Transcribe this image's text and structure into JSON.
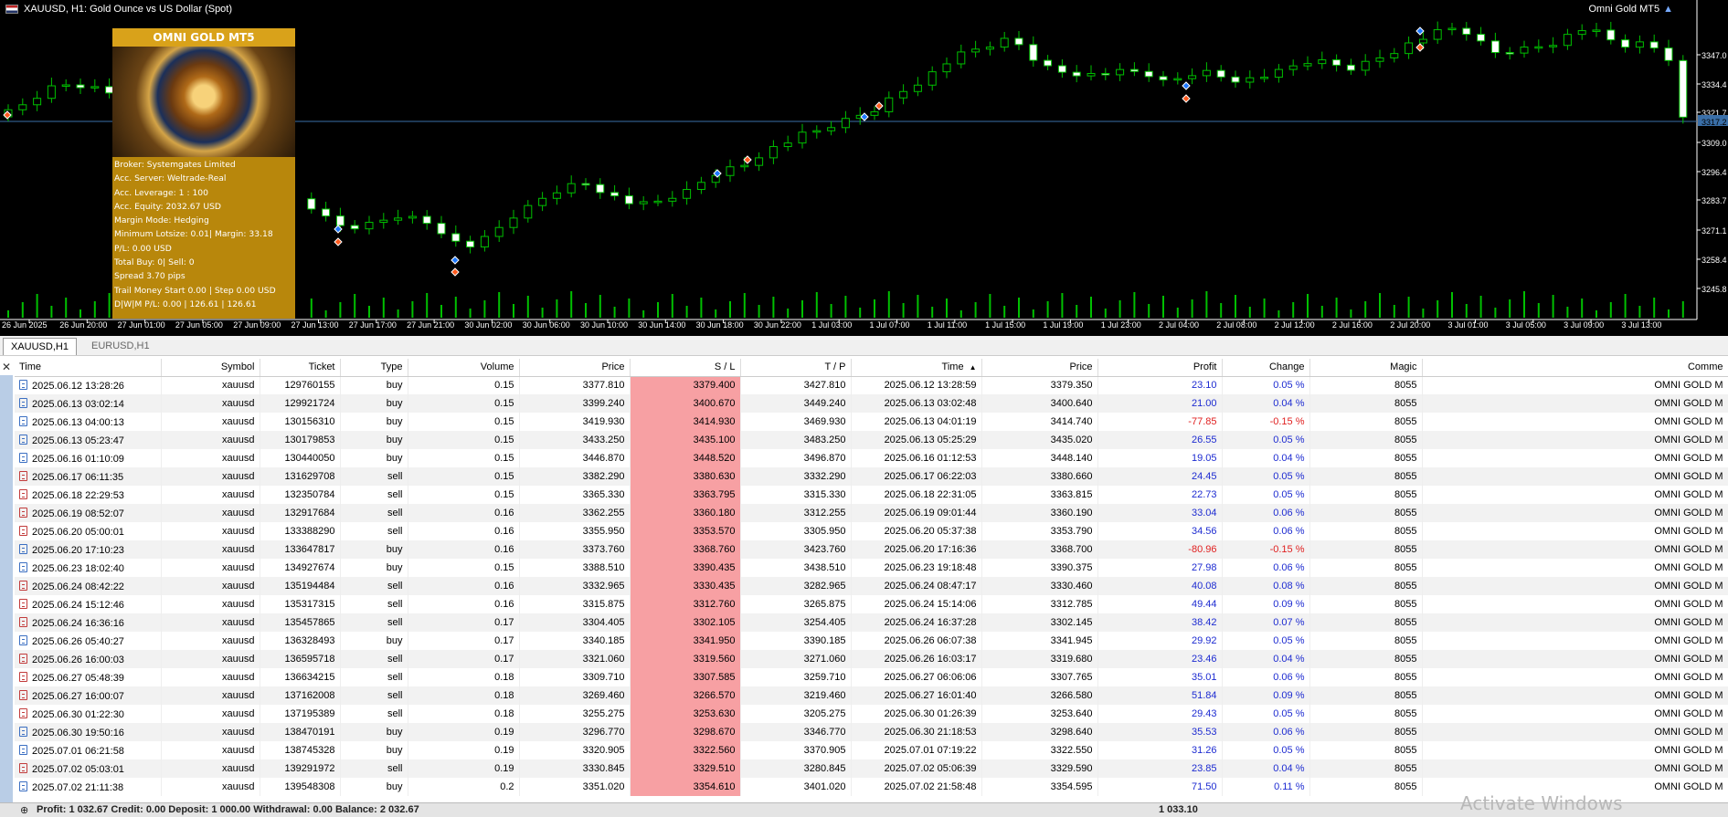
{
  "chart": {
    "title": "XAUUSD, H1:  Gold Ounce vs US Dollar (Spot)",
    "ea_name": "Omni Gold MT5",
    "price_labels": [
      "3347.0",
      "3334.4",
      "3321.7",
      "3317.2",
      "3309.0",
      "3296.4",
      "3283.7",
      "3271.1",
      "3258.4",
      "3245.8"
    ],
    "time_labels": [
      "26 Jun 2025",
      "26 Jun 20:00",
      "27 Jun 01:00",
      "27 Jun 05:00",
      "27 Jun 09:00",
      "27 Jun 13:00",
      "27 Jun 17:00",
      "27 Jun 21:00",
      "30 Jun 02:00",
      "30 Jun 06:00",
      "30 Jun 10:00",
      "30 Jun 14:00",
      "30 Jun 18:00",
      "30 Jun 22:00",
      "1 Jul 03:00",
      "1 Jul 07:00",
      "1 Jul 11:00",
      "1 Jul 15:00",
      "1 Jul 19:00",
      "1 Jul 23:00",
      "2 Jul 04:00",
      "2 Jul 08:00",
      "2 Jul 12:00",
      "2 Jul 16:00",
      "2 Jul 20:00",
      "3 Jul 01:00",
      "3 Jul 05:00",
      "3 Jul 09:00",
      "3 Jul 13:00"
    ]
  },
  "panel": {
    "title": "OMNI GOLD MT5",
    "lines": [
      "Broker:  Systemgates Limited",
      "Acc. Server:  Weltrade-Real",
      "Acc. Leverage:  1 : 100",
      "Acc. Equity:  2032.67 USD",
      "Margin Mode:  Hedging",
      "Minimum Lotsize: 0.01| Margin: 33.18",
      "P/L: 0.00 USD",
      "Total Buy: 0| Sell: 0",
      "Spread 3.70 pips",
      "Trail Money Start 0.00 | Step 0.00 USD",
      "D|W|M P/L: 0.00 | 126.61 | 126.61"
    ]
  },
  "tabs": [
    "XAUUSD,H1",
    "EURUSD,H1"
  ],
  "columns": [
    "Time",
    "Symbol",
    "Ticket",
    "Type",
    "Volume",
    "Price",
    "S / L",
    "T / P",
    "Time",
    "Price",
    "Profit",
    "Change",
    "Magic",
    "Comme"
  ],
  "rows": [
    [
      "2025.06.12 13:28:26",
      "xauusd",
      "129760155",
      "buy",
      "0.15",
      "3377.810",
      "3379.400",
      "3427.810",
      "2025.06.12 13:28:59",
      "3379.350",
      "23.10",
      "0.05 %",
      "8055",
      "OMNI GOLD M"
    ],
    [
      "2025.06.13 03:02:14",
      "xauusd",
      "129921724",
      "buy",
      "0.15",
      "3399.240",
      "3400.670",
      "3449.240",
      "2025.06.13 03:02:48",
      "3400.640",
      "21.00",
      "0.04 %",
      "8055",
      "OMNI GOLD M"
    ],
    [
      "2025.06.13 04:00:13",
      "xauusd",
      "130156310",
      "buy",
      "0.15",
      "3419.930",
      "3414.930",
      "3469.930",
      "2025.06.13 04:01:19",
      "3414.740",
      "-77.85",
      "-0.15 %",
      "8055",
      "OMNI GOLD M"
    ],
    [
      "2025.06.13 05:23:47",
      "xauusd",
      "130179853",
      "buy",
      "0.15",
      "3433.250",
      "3435.100",
      "3483.250",
      "2025.06.13 05:25:29",
      "3435.020",
      "26.55",
      "0.05 %",
      "8055",
      "OMNI GOLD M"
    ],
    [
      "2025.06.16 01:10:09",
      "xauusd",
      "130440050",
      "buy",
      "0.15",
      "3446.870",
      "3448.520",
      "3496.870",
      "2025.06.16 01:12:53",
      "3448.140",
      "19.05",
      "0.04 %",
      "8055",
      "OMNI GOLD M"
    ],
    [
      "2025.06.17 06:11:35",
      "xauusd",
      "131629708",
      "sell",
      "0.15",
      "3382.290",
      "3380.630",
      "3332.290",
      "2025.06.17 06:22:03",
      "3380.660",
      "24.45",
      "0.05 %",
      "8055",
      "OMNI GOLD M"
    ],
    [
      "2025.06.18 22:29:53",
      "xauusd",
      "132350784",
      "sell",
      "0.15",
      "3365.330",
      "3363.795",
      "3315.330",
      "2025.06.18 22:31:05",
      "3363.815",
      "22.73",
      "0.05 %",
      "8055",
      "OMNI GOLD M"
    ],
    [
      "2025.06.19 08:52:07",
      "xauusd",
      "132917684",
      "sell",
      "0.16",
      "3362.255",
      "3360.180",
      "3312.255",
      "2025.06.19 09:01:44",
      "3360.190",
      "33.04",
      "0.06 %",
      "8055",
      "OMNI GOLD M"
    ],
    [
      "2025.06.20 05:00:01",
      "xauusd",
      "133388290",
      "sell",
      "0.16",
      "3355.950",
      "3353.570",
      "3305.950",
      "2025.06.20 05:37:38",
      "3353.790",
      "34.56",
      "0.06 %",
      "8055",
      "OMNI GOLD M"
    ],
    [
      "2025.06.20 17:10:23",
      "xauusd",
      "133647817",
      "buy",
      "0.16",
      "3373.760",
      "3368.760",
      "3423.760",
      "2025.06.20 17:16:36",
      "3368.700",
      "-80.96",
      "-0.15 %",
      "8055",
      "OMNI GOLD M"
    ],
    [
      "2025.06.23 18:02:40",
      "xauusd",
      "134927674",
      "buy",
      "0.15",
      "3388.510",
      "3390.435",
      "3438.510",
      "2025.06.23 19:18:48",
      "3390.375",
      "27.98",
      "0.06 %",
      "8055",
      "OMNI GOLD M"
    ],
    [
      "2025.06.24 08:42:22",
      "xauusd",
      "135194484",
      "sell",
      "0.16",
      "3332.965",
      "3330.435",
      "3282.965",
      "2025.06.24 08:47:17",
      "3330.460",
      "40.08",
      "0.08 %",
      "8055",
      "OMNI GOLD M"
    ],
    [
      "2025.06.24 15:12:46",
      "xauusd",
      "135317315",
      "sell",
      "0.16",
      "3315.875",
      "3312.760",
      "3265.875",
      "2025.06.24 15:14:06",
      "3312.785",
      "49.44",
      "0.09 %",
      "8055",
      "OMNI GOLD M"
    ],
    [
      "2025.06.24 16:36:16",
      "xauusd",
      "135457865",
      "sell",
      "0.17",
      "3304.405",
      "3302.105",
      "3254.405",
      "2025.06.24 16:37:28",
      "3302.145",
      "38.42",
      "0.07 %",
      "8055",
      "OMNI GOLD M"
    ],
    [
      "2025.06.26 05:40:27",
      "xauusd",
      "136328493",
      "buy",
      "0.17",
      "3340.185",
      "3341.950",
      "3390.185",
      "2025.06.26 06:07:38",
      "3341.945",
      "29.92",
      "0.05 %",
      "8055",
      "OMNI GOLD M"
    ],
    [
      "2025.06.26 16:00:03",
      "xauusd",
      "136595718",
      "sell",
      "0.17",
      "3321.060",
      "3319.560",
      "3271.060",
      "2025.06.26 16:03:17",
      "3319.680",
      "23.46",
      "0.04 %",
      "8055",
      "OMNI GOLD M"
    ],
    [
      "2025.06.27 05:48:39",
      "xauusd",
      "136634215",
      "sell",
      "0.18",
      "3309.710",
      "3307.585",
      "3259.710",
      "2025.06.27 06:06:06",
      "3307.765",
      "35.01",
      "0.06 %",
      "8055",
      "OMNI GOLD M"
    ],
    [
      "2025.06.27 16:00:07",
      "xauusd",
      "137162008",
      "sell",
      "0.18",
      "3269.460",
      "3266.570",
      "3219.460",
      "2025.06.27 16:01:40",
      "3266.580",
      "51.84",
      "0.09 %",
      "8055",
      "OMNI GOLD M"
    ],
    [
      "2025.06.30 01:22:30",
      "xauusd",
      "137195389",
      "sell",
      "0.18",
      "3255.275",
      "3253.630",
      "3205.275",
      "2025.06.30 01:26:39",
      "3253.640",
      "29.43",
      "0.05 %",
      "8055",
      "OMNI GOLD M"
    ],
    [
      "2025.06.30 19:50:16",
      "xauusd",
      "138470191",
      "buy",
      "0.19",
      "3296.770",
      "3298.670",
      "3346.770",
      "2025.06.30 21:18:53",
      "3298.640",
      "35.53",
      "0.06 %",
      "8055",
      "OMNI GOLD M"
    ],
    [
      "2025.07.01 06:21:58",
      "xauusd",
      "138745328",
      "buy",
      "0.19",
      "3320.905",
      "3322.560",
      "3370.905",
      "2025.07.01 07:19:22",
      "3322.550",
      "31.26",
      "0.05 %",
      "8055",
      "OMNI GOLD M"
    ],
    [
      "2025.07.02 05:03:01",
      "xauusd",
      "139291972",
      "sell",
      "0.19",
      "3330.845",
      "3329.510",
      "3280.845",
      "2025.07.02 05:06:39",
      "3329.590",
      "23.85",
      "0.04 %",
      "8055",
      "OMNI GOLD M"
    ],
    [
      "2025.07.02 21:11:38",
      "xauusd",
      "139548308",
      "buy",
      "0.2",
      "3351.020",
      "3354.610",
      "3401.020",
      "2025.07.02 21:58:48",
      "3354.595",
      "71.50",
      "0.11 %",
      "8055",
      "OMNI GOLD M"
    ]
  ],
  "footer": {
    "summary": "Profit: 1 032.67  Credit: 0.00  Deposit: 1 000.00  Withdrawal: 0.00  Balance: 2 032.67",
    "total_profit": "1 033.10"
  },
  "watermark": "Activate Windows",
  "colors": {
    "bull": "#00c000",
    "sl_cell": "#f7a0a3",
    "panel": "#b8870c",
    "profit_pos": "#1d2bd1",
    "profit_neg": "#e02020"
  }
}
